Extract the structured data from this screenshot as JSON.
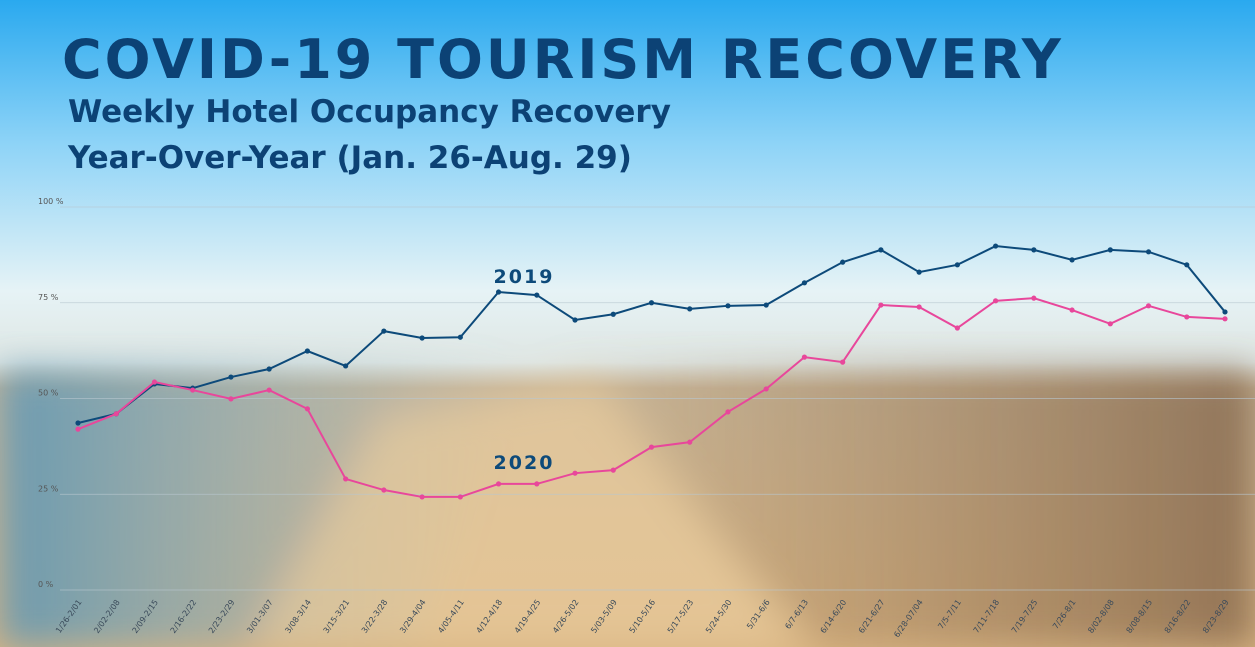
{
  "chart_data": {
    "type": "line",
    "title": "COVID-19 TOURISM RECOVERY",
    "subtitle": [
      "Weekly Hotel Occupancy Recovery",
      "Year-Over-Year (Jan. 26-Aug. 29)"
    ],
    "categories": [
      "1/26-2/01",
      "2/02-2/08",
      "2/09-2/15",
      "2/16-2/22",
      "2/23-2/29",
      "3/01-3/07",
      "3/08-3/14",
      "3/15-3/21",
      "3/22-3/28",
      "3/29-4/04",
      "4/05-4/11",
      "4/12-4/18",
      "4/19-4/25",
      "4/26-5/02",
      "5/03-5/09",
      "5/10-5/16",
      "5/17-5/23",
      "5/24-5/30",
      "5/31-6/6",
      "6/7-6/13",
      "6/14-6/20",
      "6/21-6/27",
      "6/28-07/04",
      "7/5-7/11",
      "7/11-7/18",
      "7/19-7/25",
      "7/26-8/1",
      "8/02-8/08",
      "8/08-8/15",
      "8/16-8/22",
      "8/23-8/29"
    ],
    "series": [
      {
        "name": "2019",
        "color": "#0d4a7a",
        "values": [
          43.6,
          46,
          53.8,
          52.7,
          55.6,
          57.7,
          62.4,
          58.5,
          67.6,
          65.8,
          66,
          77.8,
          77,
          70.5,
          72,
          75,
          73.4,
          74.2,
          74.4,
          80.2,
          85.6,
          88.8,
          83,
          84.9,
          89.8,
          88.8,
          86.2,
          88.8,
          88.3,
          84.9,
          72.6
        ]
      },
      {
        "name": "2020",
        "color": "#e8479b",
        "values": [
          42,
          46,
          54.3,
          52.2,
          49.9,
          52.2,
          47.3,
          29,
          26.1,
          24.3,
          24.3,
          27.7,
          27.7,
          30.5,
          31.3,
          37.3,
          38.6,
          46.5,
          52.5,
          60.8,
          59.5,
          74.4,
          73.9,
          68.4,
          75.5,
          76.2,
          73.1,
          69.5,
          74.2,
          71.3,
          70.8
        ]
      }
    ],
    "ylim": [
      0,
      100
    ],
    "yticks": [
      {
        "value": 0,
        "label": "0 %"
      },
      {
        "value": 25,
        "label": "25 %"
      },
      {
        "value": 50,
        "label": "50 %"
      },
      {
        "value": 75,
        "label": "75 %"
      },
      {
        "value": 100,
        "label": "100 %"
      }
    ],
    "grid": true
  }
}
